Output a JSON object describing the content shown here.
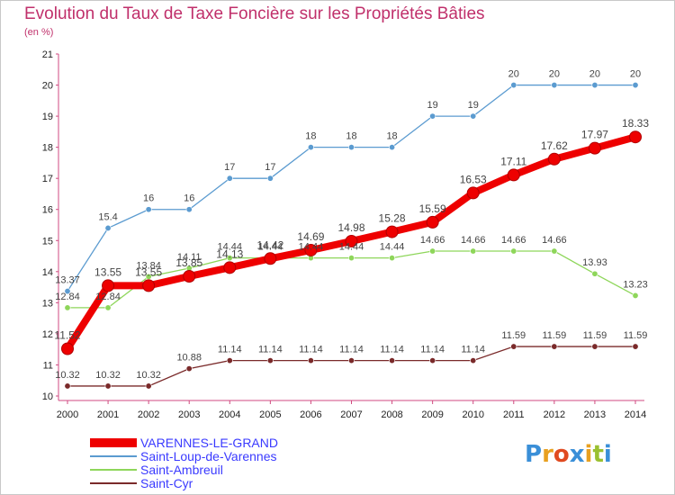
{
  "title": "Evolution du Taux de Taxe Foncière sur les Propriétés Bâties",
  "unit": "(en %)",
  "logo": {
    "text": "Proxiti",
    "colors": [
      "#3a8fd8",
      "#e8a020",
      "#e04a20",
      "#3a8fd8",
      "#e8a020",
      "#9ac030",
      "#3a8fd8"
    ]
  },
  "chart_data": {
    "type": "line",
    "title": "Evolution du Taux de Taxe Foncière sur les Propriétés Bâties",
    "ylabel": "(en %)",
    "xlabel": "",
    "ylim": [
      10,
      21
    ],
    "yticks": [
      "10",
      "11",
      "12",
      "13",
      "14",
      "15",
      "16",
      "17",
      "18",
      "19",
      "20",
      "21"
    ],
    "categories": [
      "2000",
      "2001",
      "2002",
      "2003",
      "2004",
      "2005",
      "2006",
      "2007",
      "2008",
      "2009",
      "2010",
      "2011",
      "2012",
      "2013",
      "2014"
    ],
    "series": [
      {
        "name": "VARENNES-LE-GRAND",
        "color": "#ee0000",
        "heavy": true,
        "values": [
          11.52,
          13.55,
          13.55,
          13.85,
          14.13,
          14.42,
          14.69,
          14.98,
          15.28,
          15.59,
          16.53,
          17.11,
          17.62,
          17.97,
          18.33
        ],
        "labels": [
          "11.52",
          "13.55",
          "13.55",
          "13.85",
          "14.13",
          "14.42",
          "14.69",
          "14.98",
          "15.28",
          "15.59",
          "16.53",
          "17.11",
          "17.62",
          "17.97",
          "18.33"
        ]
      },
      {
        "name": "Saint-Loup-de-Varennes",
        "color": "#5b9bd0",
        "heavy": false,
        "values": [
          13.37,
          15.4,
          16,
          16,
          17,
          17,
          18,
          18,
          18,
          19,
          19,
          20,
          20,
          20,
          20
        ],
        "labels": [
          "13.37",
          "15.4",
          "16",
          "16",
          "17",
          "17",
          "18",
          "18",
          "18",
          "19",
          "19",
          "20",
          "20",
          "20",
          "20"
        ]
      },
      {
        "name": "Saint-Ambreuil",
        "color": "#8ed65a",
        "heavy": false,
        "values": [
          12.84,
          12.84,
          13.84,
          14.11,
          14.44,
          14.44,
          14.44,
          14.44,
          14.44,
          14.66,
          14.66,
          14.66,
          14.66,
          13.93,
          13.23
        ],
        "labels": [
          "12.84",
          "12.84",
          "13.84",
          "14.11",
          "14.44",
          "14.44",
          "14.44",
          "14.44",
          "14.44",
          "14.66",
          "14.66",
          "14.66",
          "14.66",
          "13.93",
          "13.23"
        ]
      },
      {
        "name": "Saint-Cyr",
        "color": "#7a2a2a",
        "heavy": false,
        "values": [
          10.32,
          10.32,
          10.32,
          10.88,
          11.14,
          11.14,
          11.14,
          11.14,
          11.14,
          11.14,
          11.14,
          11.59,
          11.59,
          11.59,
          11.59
        ],
        "labels": [
          "10.32",
          "10.32",
          "10.32",
          "10.88",
          "11.14",
          "11.14",
          "11.14",
          "11.14",
          "11.14",
          "11.14",
          "11.14",
          "11.59",
          "11.59",
          "11.59",
          "11.59"
        ]
      }
    ],
    "grid": false,
    "legend": "bottom-left"
  }
}
